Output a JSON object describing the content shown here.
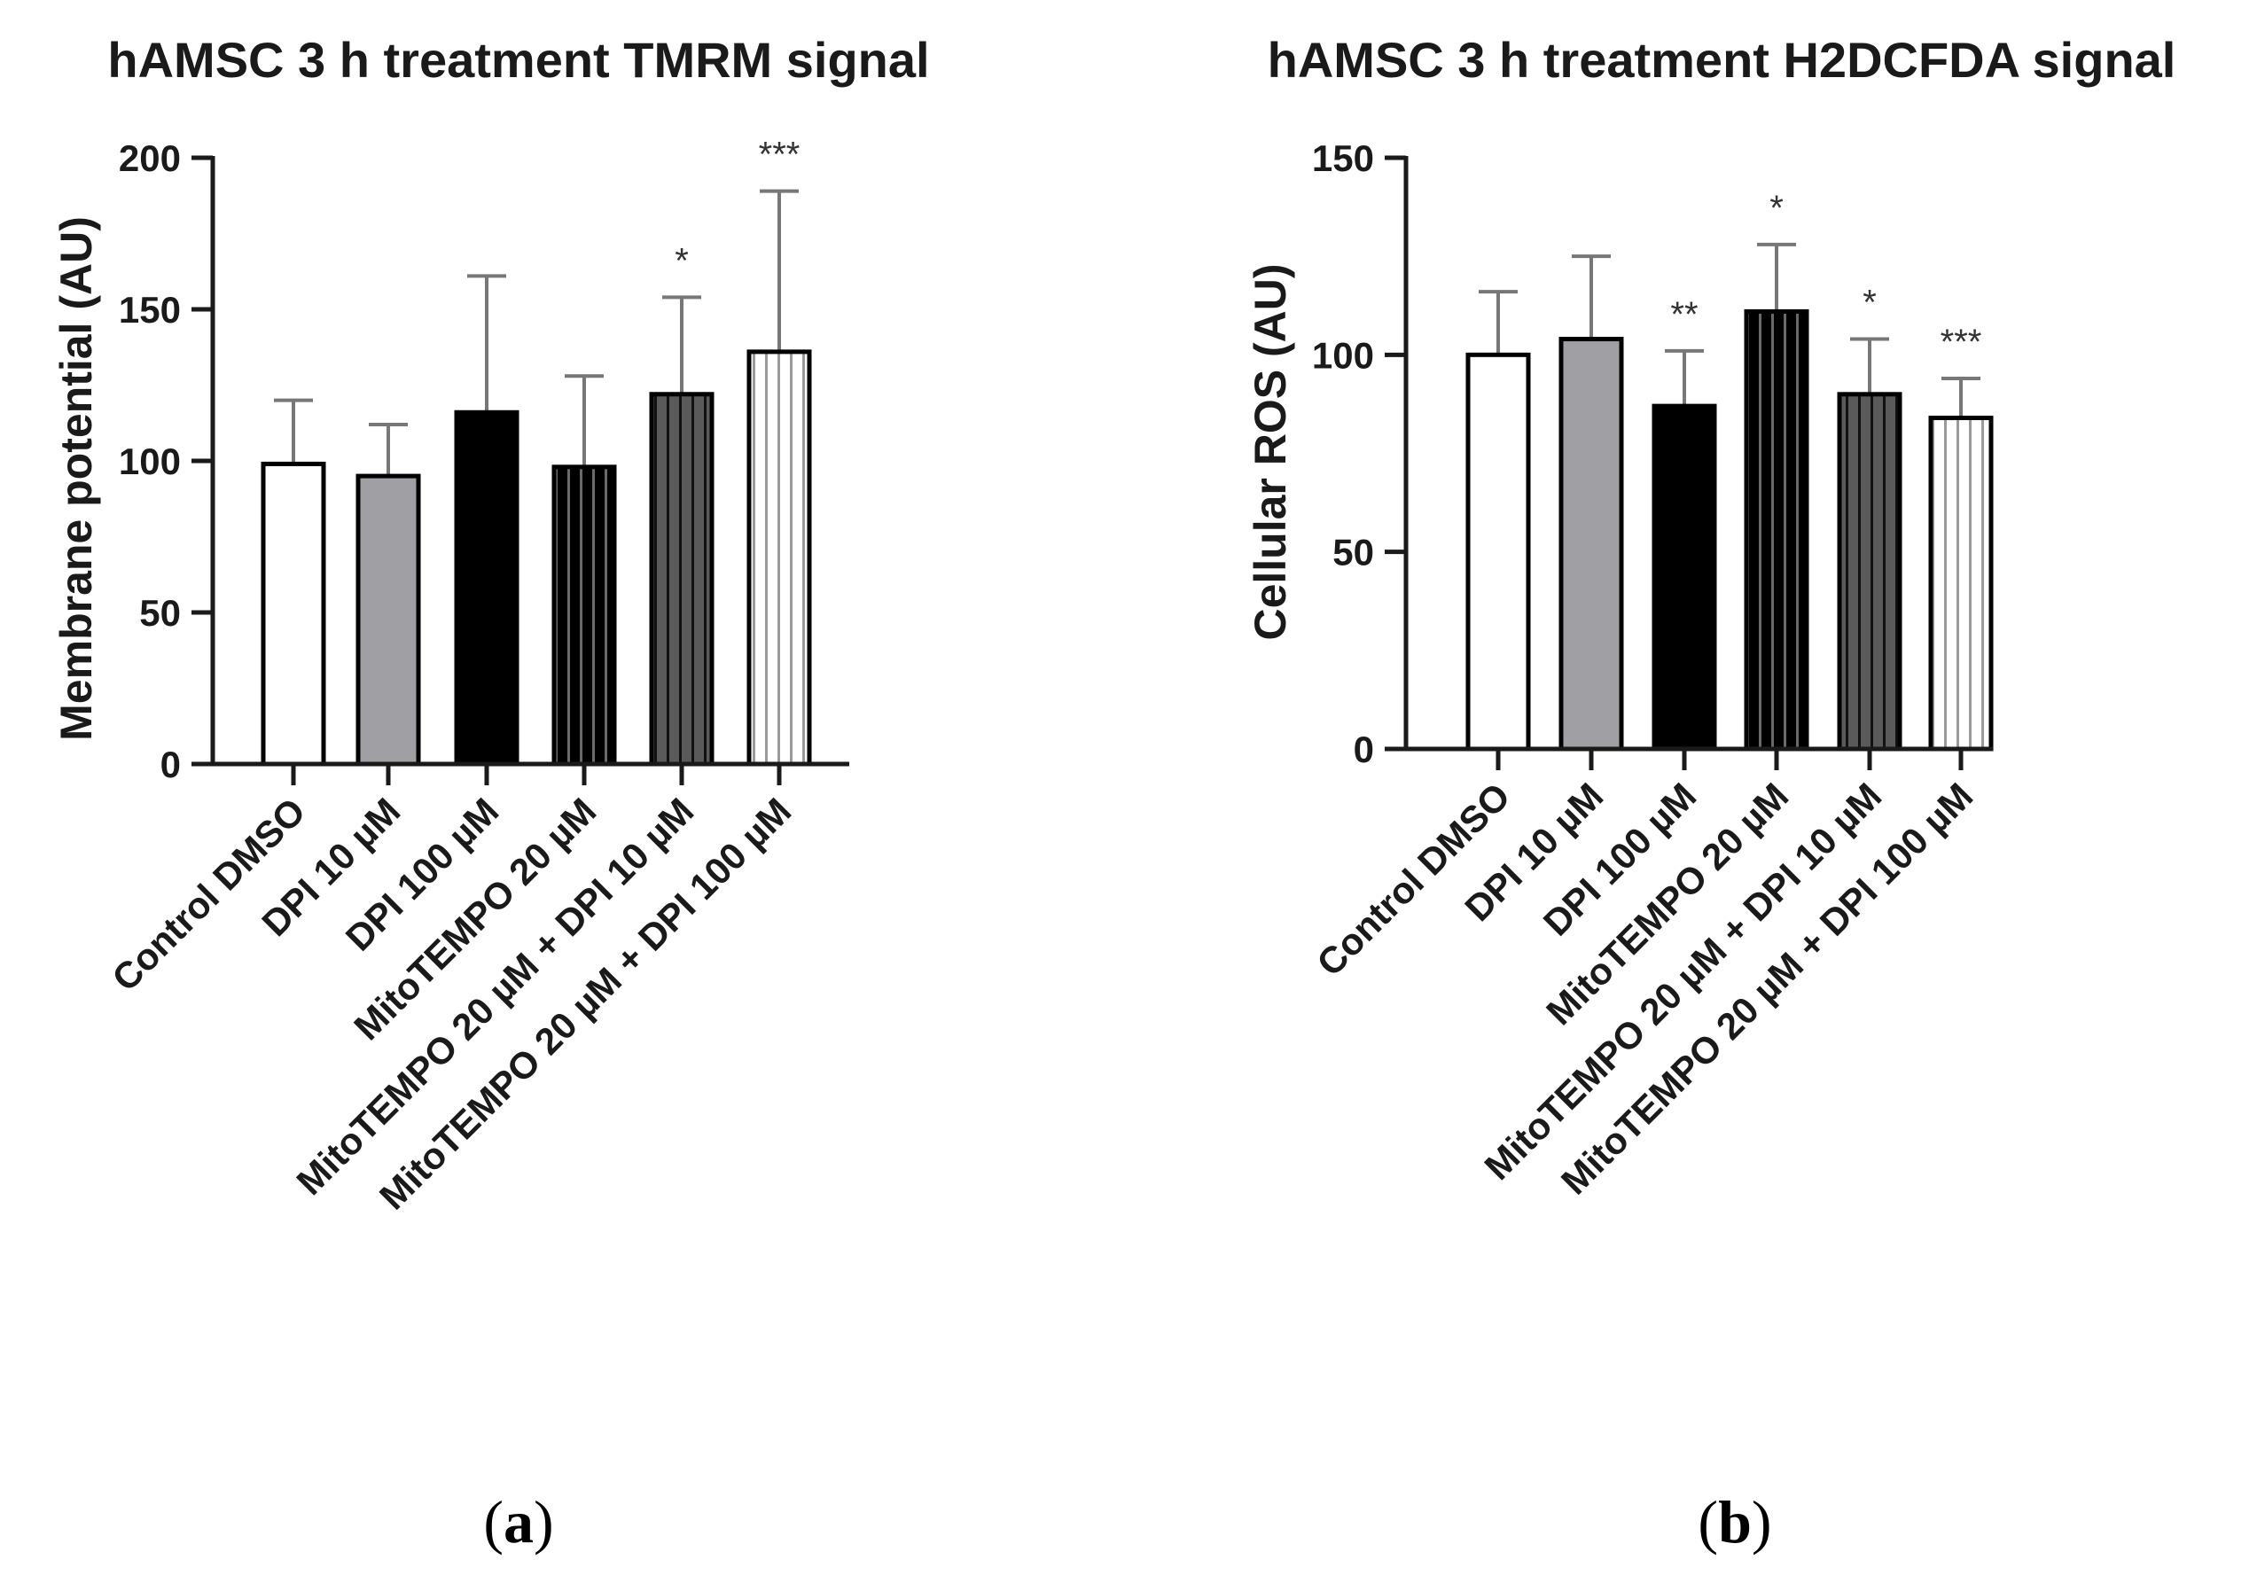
{
  "chart_data": [
    {
      "id": "a",
      "type": "bar",
      "title": "hAMSC 3 h treatment TMRM signal",
      "xlabel": "",
      "ylabel": "Membrane potential (AU)",
      "ylim": [
        0,
        200
      ],
      "yticks": [
        0,
        50,
        100,
        150,
        200
      ],
      "categories": [
        "Control DMSO",
        "DPI 10 µM",
        "DPI 100 µM",
        "MitoTEMPO 20 µM",
        "MitoTEMPO 20 µM + DPI 10 µM",
        "MitoTEMPO 20 µM + DPI 100 µM"
      ],
      "values": [
        99,
        95,
        116,
        98,
        122,
        136
      ],
      "errors": [
        21,
        17,
        45,
        30,
        32,
        53
      ],
      "significance": [
        "",
        "",
        "",
        "",
        "*",
        "***"
      ],
      "fills": [
        "white",
        "gray",
        "black",
        "black-striped",
        "darkgray-striped",
        "white-striped"
      ],
      "panel_label": {
        "open": "(",
        "letter": "a",
        "close": ")"
      }
    },
    {
      "id": "b",
      "type": "bar",
      "title": "hAMSC 3 h treatment H2DCFDA signal",
      "xlabel": "",
      "ylabel": "Cellular ROS (AU)",
      "ylim": [
        0,
        150
      ],
      "yticks": [
        0,
        50,
        100,
        150
      ],
      "categories": [
        "Control DMSO",
        "DPI 10 µM",
        "DPI 100 µM",
        "MitoTEMPO 20 µM",
        "MitoTEMPO 20 µM + DPI 10 µM",
        "MitoTEMPO 20 µM + DPI 100 µM"
      ],
      "values": [
        100,
        104,
        87,
        111,
        90,
        84
      ],
      "errors": [
        16,
        21,
        14,
        17,
        14,
        10
      ],
      "significance": [
        "",
        "",
        "**",
        "*",
        "*",
        "***"
      ],
      "fills": [
        "white",
        "gray",
        "black",
        "black-striped",
        "darkgray-striped",
        "white-striped"
      ],
      "panel_label": {
        "open": "(",
        "letter": "b",
        "close": ")"
      }
    }
  ],
  "colors": {
    "axis": "#1a1a1a",
    "bar_stroke": "#000000",
    "gray_bar": "#a0a0a4",
    "dark_stripe": "#5a5a5a",
    "light_stripe": "#9a9a9a",
    "error_bar": "#777777"
  }
}
